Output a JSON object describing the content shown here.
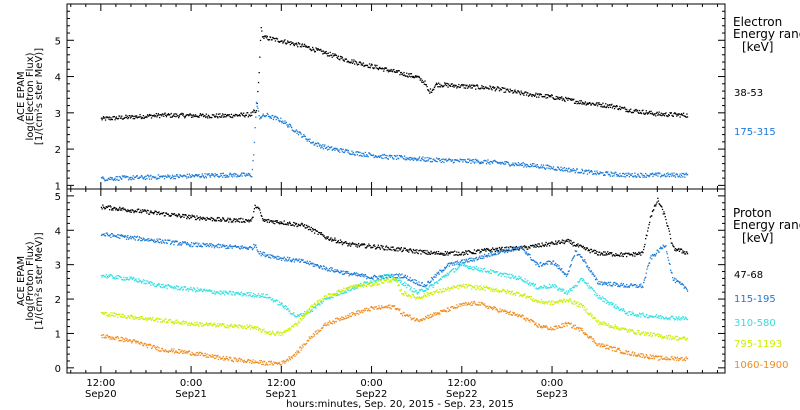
{
  "chart_data": [
    {
      "type": "scatter",
      "panel": "electron",
      "ylabel_lines": [
        "ACE EPAM",
        "log(Electron Flux)",
        "[1/(cm²s ster MeV)]"
      ],
      "ylim": [
        0.9,
        6.0
      ],
      "yticks": [
        1,
        2,
        3,
        4,
        5
      ],
      "legend_title": [
        "Electron",
        "Energy range",
        "[keV]"
      ],
      "series": [
        {
          "name": "38-53",
          "color": "#000000",
          "points": [
            [
              0,
              2.85
            ],
            [
              8,
              2.95
            ],
            [
              16,
              2.93
            ],
            [
              20,
              2.97
            ],
            [
              20.3,
              3.05
            ],
            [
              20.6,
              3.0
            ],
            [
              21,
              4.2
            ],
            [
              21.2,
              5.35
            ],
            [
              21.5,
              5.1
            ],
            [
              24,
              5.0
            ],
            [
              27,
              4.85
            ],
            [
              30,
              4.65
            ],
            [
              33,
              4.45
            ],
            [
              36,
              4.3
            ],
            [
              39,
              4.15
            ],
            [
              42,
              4.0
            ],
            [
              43,
              3.85
            ],
            [
              43.5,
              3.6
            ],
            [
              44,
              3.65
            ],
            [
              44.5,
              3.8
            ],
            [
              48,
              3.75
            ],
            [
              52,
              3.7
            ],
            [
              56,
              3.55
            ],
            [
              60,
              3.45
            ],
            [
              64,
              3.3
            ],
            [
              68,
              3.2
            ],
            [
              70,
              3.1
            ],
            [
              74,
              2.98
            ],
            [
              78,
              2.95
            ]
          ]
        },
        {
          "name": "175-315",
          "color": "#1a7ad6",
          "points": [
            [
              0,
              1.2
            ],
            [
              8,
              1.25
            ],
            [
              16,
              1.3
            ],
            [
              20,
              1.3
            ],
            [
              20.3,
              2.0
            ],
            [
              20.6,
              3.3
            ],
            [
              21,
              2.9
            ],
            [
              22,
              2.95
            ],
            [
              24,
              2.8
            ],
            [
              26,
              2.5
            ],
            [
              28,
              2.2
            ],
            [
              30,
              2.05
            ],
            [
              34,
              1.9
            ],
            [
              38,
              1.8
            ],
            [
              42,
              1.75
            ],
            [
              44,
              1.72
            ],
            [
              46,
              1.7
            ],
            [
              50,
              1.68
            ],
            [
              54,
              1.62
            ],
            [
              58,
              1.55
            ],
            [
              62,
              1.45
            ],
            [
              66,
              1.35
            ],
            [
              70,
              1.3
            ],
            [
              74,
              1.3
            ],
            [
              78,
              1.3
            ]
          ]
        }
      ]
    },
    {
      "type": "scatter",
      "panel": "proton",
      "ylabel_lines": [
        "ACE EPAM",
        "log(Proton Flux)",
        "[1/(cm²s ster MeV)]"
      ],
      "ylim": [
        -0.15,
        5.2
      ],
      "yticks": [
        0,
        1,
        2,
        3,
        4,
        5
      ],
      "legend_title": [
        "Proton",
        "Energy range",
        "[keV]"
      ],
      "series": [
        {
          "name": "47-68",
          "color": "#000000",
          "points": [
            [
              0,
              4.7
            ],
            [
              4,
              4.6
            ],
            [
              8,
              4.5
            ],
            [
              12,
              4.4
            ],
            [
              16,
              4.32
            ],
            [
              20,
              4.3
            ],
            [
              20.5,
              4.75
            ],
            [
              21,
              4.6
            ],
            [
              21.5,
              4.3
            ],
            [
              24,
              4.25
            ],
            [
              27,
              4.15
            ],
            [
              30,
              3.8
            ],
            [
              33,
              3.6
            ],
            [
              36,
              3.55
            ],
            [
              40,
              3.45
            ],
            [
              44,
              3.35
            ],
            [
              48,
              3.35
            ],
            [
              52,
              3.45
            ],
            [
              56,
              3.5
            ],
            [
              59,
              3.6
            ],
            [
              62,
              3.7
            ],
            [
              64,
              3.5
            ],
            [
              66,
              3.35
            ],
            [
              70,
              3.3
            ],
            [
              72,
              3.35
            ],
            [
              73,
              4.4
            ],
            [
              74,
              4.9
            ],
            [
              75,
              4.4
            ],
            [
              76,
              3.5
            ],
            [
              78,
              3.35
            ]
          ]
        },
        {
          "name": "115-195",
          "color": "#1a7ad6",
          "points": [
            [
              0,
              3.9
            ],
            [
              4,
              3.8
            ],
            [
              8,
              3.7
            ],
            [
              12,
              3.6
            ],
            [
              16,
              3.55
            ],
            [
              20,
              3.5
            ],
            [
              20.5,
              3.6
            ],
            [
              21,
              3.35
            ],
            [
              24,
              3.2
            ],
            [
              27,
              3.1
            ],
            [
              30,
              2.9
            ],
            [
              33,
              2.75
            ],
            [
              36,
              2.65
            ],
            [
              40,
              2.7
            ],
            [
              43,
              2.4
            ],
            [
              44,
              2.6
            ],
            [
              46,
              3.0
            ],
            [
              50,
              3.2
            ],
            [
              53,
              3.4
            ],
            [
              56,
              3.5
            ],
            [
              58,
              3.0
            ],
            [
              60,
              3.1
            ],
            [
              62,
              2.7
            ],
            [
              63,
              3.4
            ],
            [
              64,
              3.2
            ],
            [
              66,
              2.5
            ],
            [
              70,
              2.4
            ],
            [
              72,
              2.4
            ],
            [
              73,
              3.2
            ],
            [
              75,
              3.6
            ],
            [
              76,
              2.6
            ],
            [
              78,
              2.3
            ]
          ]
        },
        {
          "name": "310-580",
          "color": "#33dfe0",
          "points": [
            [
              0,
              2.7
            ],
            [
              4,
              2.6
            ],
            [
              8,
              2.4
            ],
            [
              12,
              2.3
            ],
            [
              16,
              2.2
            ],
            [
              20,
              2.15
            ],
            [
              22,
              2.1
            ],
            [
              24,
              1.85
            ],
            [
              26,
              1.5
            ],
            [
              28,
              1.7
            ],
            [
              30,
              2.05
            ],
            [
              33,
              2.3
            ],
            [
              36,
              2.55
            ],
            [
              38,
              2.7
            ],
            [
              40,
              2.5
            ],
            [
              42,
              2.2
            ],
            [
              44,
              2.4
            ],
            [
              46,
              2.75
            ],
            [
              48,
              3.0
            ],
            [
              52,
              2.8
            ],
            [
              56,
              2.6
            ],
            [
              58,
              2.35
            ],
            [
              60,
              2.4
            ],
            [
              62,
              2.2
            ],
            [
              64,
              2.6
            ],
            [
              66,
              2.1
            ],
            [
              70,
              1.6
            ],
            [
              74,
              1.5
            ],
            [
              78,
              1.45
            ]
          ]
        },
        {
          "name": "795-1193",
          "color": "#c8f000",
          "points": [
            [
              0,
              1.6
            ],
            [
              4,
              1.5
            ],
            [
              8,
              1.4
            ],
            [
              12,
              1.3
            ],
            [
              16,
              1.25
            ],
            [
              20,
              1.2
            ],
            [
              22,
              1.05
            ],
            [
              24,
              1.0
            ],
            [
              26,
              1.3
            ],
            [
              28,
              1.8
            ],
            [
              30,
              2.1
            ],
            [
              33,
              2.35
            ],
            [
              36,
              2.45
            ],
            [
              39,
              2.6
            ],
            [
              40,
              2.2
            ],
            [
              42,
              2.05
            ],
            [
              44,
              2.2
            ],
            [
              46,
              2.3
            ],
            [
              48,
              2.4
            ],
            [
              52,
              2.3
            ],
            [
              56,
              2.15
            ],
            [
              58,
              1.95
            ],
            [
              60,
              1.9
            ],
            [
              62,
              2.0
            ],
            [
              64,
              1.8
            ],
            [
              66,
              1.35
            ],
            [
              70,
              1.1
            ],
            [
              74,
              0.95
            ],
            [
              78,
              0.85
            ]
          ]
        },
        {
          "name": "1060-1900",
          "color": "#f08c1e",
          "points": [
            [
              0,
              0.95
            ],
            [
              4,
              0.8
            ],
            [
              8,
              0.55
            ],
            [
              12,
              0.45
            ],
            [
              16,
              0.3
            ],
            [
              20,
              0.2
            ],
            [
              22,
              0.15
            ],
            [
              24,
              0.15
            ],
            [
              26,
              0.45
            ],
            [
              28,
              0.95
            ],
            [
              30,
              1.3
            ],
            [
              33,
              1.55
            ],
            [
              36,
              1.75
            ],
            [
              39,
              1.8
            ],
            [
              40,
              1.6
            ],
            [
              42,
              1.4
            ],
            [
              44,
              1.55
            ],
            [
              46,
              1.7
            ],
            [
              48,
              1.85
            ],
            [
              50,
              1.9
            ],
            [
              52,
              1.75
            ],
            [
              56,
              1.5
            ],
            [
              58,
              1.25
            ],
            [
              60,
              1.15
            ],
            [
              62,
              1.3
            ],
            [
              64,
              1.1
            ],
            [
              66,
              0.7
            ],
            [
              70,
              0.45
            ],
            [
              74,
              0.3
            ],
            [
              78,
              0.28
            ]
          ]
        }
      ]
    }
  ],
  "xaxis": {
    "range_hours": [
      -4.5,
      83
    ],
    "ticks": [
      {
        "h": 0,
        "time": "12:00",
        "day": "Sep20"
      },
      {
        "h": 12,
        "time": "0:00",
        "day": "Sep21"
      },
      {
        "h": 24,
        "time": "12:00",
        "day": "Sep21"
      },
      {
        "h": 36,
        "time": "0:00",
        "day": "Sep22"
      },
      {
        "h": 48,
        "time": "12:00",
        "day": "Sep22"
      },
      {
        "h": 60,
        "time": "0:00",
        "day": "Sep23"
      }
    ],
    "xlabel": "hours:minutes, Sep. 20, 2015 - Sep. 23, 2015"
  }
}
